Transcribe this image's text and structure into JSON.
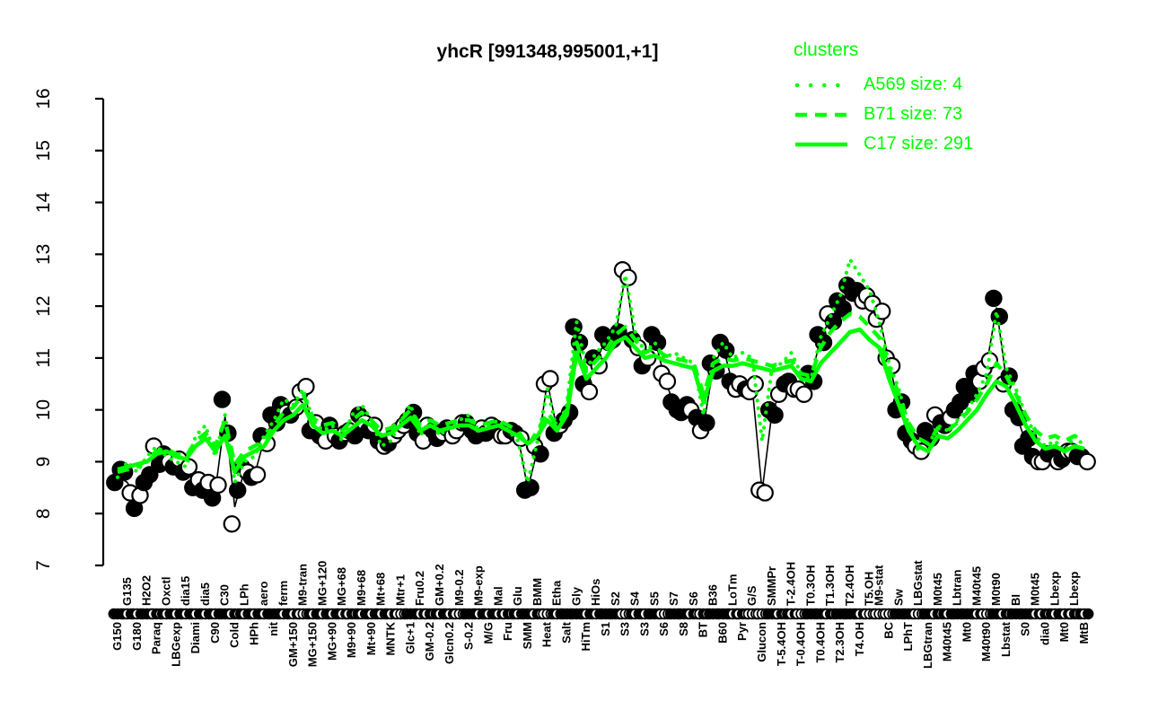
{
  "title": "yhcR [991348,995001,+1]",
  "legend": {
    "title": "clusters",
    "entries": [
      {
        "label": "A569 size: 4",
        "style": "dotted"
      },
      {
        "label": "B71 size: 73",
        "style": "dashed"
      },
      {
        "label": "C17 size: 291",
        "style": "solid"
      }
    ]
  },
  "colors": {
    "cluster_green": "#00FF00",
    "points_black": "#000000",
    "background": "#FFFFFF"
  },
  "chart_data": {
    "type": "line",
    "title": "yhcR [991348,995001,+1]",
    "ylabel": "",
    "xlabel": "",
    "ylim": [
      7,
      16
    ],
    "yticks": [
      7,
      8,
      9,
      10,
      11,
      12,
      13,
      14,
      15,
      16
    ],
    "grid": false,
    "legend_position": "top-right",
    "note": "black circles = per-condition expression replicates (filled/open), thin black line = per-condition mean, green lines = cluster mean profiles",
    "conditions": [
      [
        "G150",
        0,
        8.6,
        1,
        8.85,
        1
      ],
      [
        "G135",
        1,
        8.8,
        1,
        8.4,
        0
      ],
      [
        "G180",
        0,
        8.1,
        1,
        8.35,
        0
      ],
      [
        "H2O2",
        1,
        8.6,
        1,
        8.75,
        1
      ],
      [
        "Paraq",
        0,
        9.3,
        0,
        8.95,
        1
      ],
      [
        "Oxctl",
        1,
        9.15,
        1,
        9.0,
        0
      ],
      [
        "LBGexp",
        0,
        8.9,
        1,
        9.05,
        0
      ],
      [
        "dia15",
        1,
        8.8,
        1,
        8.9,
        0
      ],
      [
        "Diami",
        0,
        8.5,
        1,
        8.65,
        0
      ],
      [
        "dia5",
        1,
        8.45,
        1,
        8.6,
        0
      ],
      [
        "C90",
        0,
        8.3,
        1,
        8.55,
        0
      ],
      [
        "C30",
        1,
        10.2,
        1,
        9.55,
        1
      ],
      [
        "Cold",
        0,
        7.8,
        0,
        8.45,
        1
      ],
      [
        "LPh",
        1,
        8.9,
        1,
        8.8,
        0
      ],
      [
        "HPh",
        0,
        8.7,
        1,
        8.75,
        0
      ],
      [
        "aero",
        1,
        9.5,
        1,
        9.35,
        0
      ],
      [
        "nit",
        0,
        9.9,
        1,
        9.75,
        1
      ],
      [
        "ferm",
        1,
        10.1,
        1,
        9.95,
        0
      ],
      [
        "GM+150",
        0,
        9.9,
        1,
        10.05,
        0
      ],
      [
        "M9-tran",
        1,
        10.35,
        0,
        10.45,
        0
      ],
      [
        "MG+150",
        0,
        9.6,
        1,
        9.75,
        0
      ],
      [
        "MG+120",
        1,
        9.5,
        1,
        9.4,
        0
      ],
      [
        "MG+90",
        0,
        9.7,
        1,
        9.5,
        0
      ],
      [
        "MG+68",
        1,
        9.4,
        1,
        9.55,
        0
      ],
      [
        "M9+90",
        0,
        9.6,
        0,
        9.5,
        1
      ],
      [
        "M9+68",
        1,
        9.9,
        1,
        9.75,
        0
      ],
      [
        "Mt+90",
        0,
        9.6,
        1,
        9.7,
        0
      ],
      [
        "Mt+68",
        1,
        9.4,
        1,
        9.3,
        0
      ],
      [
        "MNTK",
        0,
        9.35,
        1,
        9.5,
        0
      ],
      [
        "Mtr+1",
        1,
        9.6,
        0,
        9.7,
        0
      ],
      [
        "Glc+1",
        0,
        9.8,
        1,
        9.95,
        1
      ],
      [
        "Fru0.2",
        1,
        9.55,
        1,
        9.4,
        0
      ],
      [
        "GM-0.2",
        0,
        9.7,
        0,
        9.6,
        1
      ],
      [
        "GM+0.2",
        1,
        9.45,
        1,
        9.55,
        0
      ],
      [
        "Glcn0.2",
        0,
        9.65,
        1,
        9.5,
        0
      ],
      [
        "M9-0.2",
        1,
        9.6,
        0,
        9.75,
        0
      ],
      [
        "S-0.2",
        0,
        9.75,
        1,
        9.6,
        1
      ],
      [
        "M9-exp",
        1,
        9.5,
        1,
        9.65,
        0
      ],
      [
        "M/G",
        0,
        9.55,
        1,
        9.7,
        0
      ],
      [
        "Mal",
        1,
        9.65,
        1,
        9.5,
        0
      ],
      [
        "Fru",
        0,
        9.5,
        0,
        9.6,
        1
      ],
      [
        "Glu",
        1,
        9.55,
        1,
        9.45,
        0
      ],
      [
        "SMM",
        0,
        8.45,
        1,
        8.5,
        1
      ],
      [
        "BMM",
        1,
        9.3,
        0,
        9.15,
        1
      ],
      [
        "Heat",
        0,
        10.5,
        0,
        10.6,
        0
      ],
      [
        "Etha",
        1,
        9.55,
        1,
        9.7,
        0
      ],
      [
        "Salt",
        0,
        9.8,
        1,
        9.95,
        1
      ],
      [
        "Gly",
        1,
        11.6,
        1,
        11.3,
        1
      ],
      [
        "HiTm",
        0,
        10.5,
        1,
        10.35,
        0
      ],
      [
        "HiOs",
        1,
        11.0,
        1,
        10.85,
        0
      ],
      [
        "S1",
        0,
        11.45,
        1,
        11.3,
        1
      ],
      [
        "S2",
        1,
        11.35,
        1,
        11.5,
        1
      ],
      [
        "S3",
        0,
        12.7,
        0,
        12.55,
        0
      ],
      [
        "S4",
        1,
        11.35,
        1,
        11.2,
        0
      ],
      [
        "S3",
        0,
        10.85,
        1,
        11.0,
        0
      ],
      [
        "S5",
        1,
        11.45,
        1,
        11.3,
        1
      ],
      [
        "S6",
        0,
        10.7,
        0,
        10.55,
        0
      ],
      [
        "S7",
        1,
        10.15,
        1,
        10.0,
        1
      ],
      [
        "S8",
        0,
        9.95,
        1,
        10.1,
        1
      ],
      [
        "S6",
        1,
        10.0,
        0,
        9.85,
        1
      ],
      [
        "BT",
        0,
        9.6,
        0,
        9.75,
        1
      ],
      [
        "B36",
        1,
        10.9,
        1,
        10.75,
        1
      ],
      [
        "B60",
        0,
        11.3,
        1,
        11.15,
        1
      ],
      [
        "LoTm",
        1,
        10.55,
        1,
        10.4,
        0
      ],
      [
        "Pyr",
        0,
        10.5,
        0,
        10.4,
        1
      ],
      [
        "G/S",
        1,
        10.35,
        0,
        10.5,
        0
      ],
      [
        "Glucon",
        0,
        8.45,
        0,
        8.4,
        0
      ],
      [
        "SMMPr",
        1,
        10.0,
        1,
        9.9,
        1
      ],
      [
        "T-5.4OH",
        0,
        10.3,
        0,
        10.5,
        1
      ],
      [
        "T-2.4OH",
        1,
        10.55,
        1,
        10.4,
        0
      ],
      [
        "T-0.4OH",
        0,
        10.4,
        0,
        10.3,
        0
      ],
      [
        "T0.3OH",
        1,
        10.7,
        1,
        10.55,
        1
      ],
      [
        "T0.4OH",
        0,
        11.45,
        1,
        11.3,
        1
      ],
      [
        "T1.3OH",
        1,
        11.85,
        0,
        11.7,
        1
      ],
      [
        "T2.3OH",
        0,
        12.1,
        1,
        11.95,
        1
      ],
      [
        "T2.4OH",
        1,
        12.4,
        1,
        12.25,
        1
      ],
      [
        "T4.OH",
        0,
        12.3,
        1,
        12.1,
        0
      ],
      [
        "T5.OH",
        1,
        12.2,
        0,
        12.05,
        0
      ],
      [
        "M9-stat",
        1,
        11.75,
        0,
        11.9,
        0
      ],
      [
        "BC",
        0,
        11.0,
        0,
        10.85,
        0
      ],
      [
        "Sw",
        1,
        10.0,
        1,
        10.15,
        1
      ],
      [
        "LPhT",
        0,
        9.55,
        1,
        9.4,
        1
      ],
      [
        "LBGstat",
        1,
        9.3,
        0,
        9.2,
        0
      ],
      [
        "LBGtran",
        0,
        9.6,
        1,
        9.45,
        1
      ],
      [
        "M0t45",
        1,
        9.9,
        0,
        9.75,
        1
      ],
      [
        "M40t45",
        0,
        9.7,
        1,
        9.85,
        0
      ],
      [
        "Lbtran",
        1,
        10.0,
        1,
        10.15,
        1
      ],
      [
        "Mt0",
        0,
        10.45,
        1,
        10.3,
        1
      ],
      [
        "M40t45",
        1,
        10.7,
        1,
        10.55,
        0
      ],
      [
        "M40t90",
        0,
        10.8,
        0,
        10.95,
        0
      ],
      [
        "M0t90",
        1,
        12.15,
        1,
        11.8,
        1
      ],
      [
        "Lbstat",
        0,
        10.5,
        0,
        10.65,
        1
      ],
      [
        "BI",
        1,
        10.0,
        1,
        9.85,
        1
      ],
      [
        "S0",
        0,
        9.3,
        1,
        9.45,
        1
      ],
      [
        "M0t45",
        1,
        9.1,
        1,
        9.0,
        0
      ],
      [
        "dia0",
        0,
        9.0,
        0,
        9.15,
        1
      ],
      [
        "Lbexp",
        1,
        9.15,
        1,
        9.0,
        0
      ],
      [
        "Mt0",
        0,
        9.05,
        1,
        9.2,
        0
      ],
      [
        "Lbexp",
        1,
        9.2,
        0,
        9.1,
        1
      ],
      [
        "MtB",
        0,
        9.1,
        1,
        9.0,
        0
      ]
    ],
    "series": [
      {
        "name": "A569 size: 4",
        "style": "dotted",
        "color": "#00FF00",
        "values": [
          8.7,
          9.0,
          8.8,
          9.1,
          9.3,
          9.1,
          9.0,
          8.9,
          9.5,
          9.7,
          9.1,
          9.9,
          8.6,
          9.0,
          9.1,
          9.5,
          9.8,
          10.2,
          10.1,
          10.4,
          9.8,
          9.6,
          9.7,
          9.4,
          9.9,
          10.1,
          9.8,
          9.3,
          9.4,
          9.8,
          10.1,
          9.5,
          9.8,
          9.5,
          9.7,
          9.8,
          9.9,
          9.6,
          9.7,
          9.8,
          9.6,
          9.4,
          8.6,
          9.4,
          10.4,
          9.6,
          10.1,
          11.7,
          10.8,
          11.1,
          11.3,
          11.6,
          12.6,
          11.5,
          11.1,
          11.3,
          11.0,
          11.1,
          11.0,
          10.9,
          9.9,
          11.0,
          11.3,
          11.0,
          11.1,
          11.0,
          9.4,
          10.8,
          10.9,
          11.1,
          10.7,
          10.6,
          11.4,
          11.8,
          12.2,
          12.9,
          12.6,
          12.3,
          11.7,
          10.9,
          10.4,
          9.7,
          9.2,
          9.3,
          9.7,
          9.6,
          9.8,
          10.0,
          10.3,
          10.7,
          11.9,
          10.8,
          10.4,
          9.9,
          9.5,
          9.3,
          9.4,
          9.2,
          9.5,
          9.3
        ]
      },
      {
        "name": "B71 size: 73",
        "style": "dashed",
        "color": "#00FF00",
        "values": [
          8.8,
          8.85,
          8.9,
          9.05,
          9.2,
          9.25,
          9.15,
          9.1,
          9.4,
          9.55,
          9.3,
          9.8,
          8.95,
          9.2,
          9.3,
          9.4,
          9.7,
          9.95,
          10.05,
          10.3,
          9.85,
          9.7,
          9.75,
          9.6,
          9.8,
          9.95,
          9.8,
          9.6,
          9.65,
          9.8,
          10.0,
          9.7,
          9.8,
          9.7,
          9.75,
          9.8,
          9.8,
          9.7,
          9.75,
          9.8,
          9.7,
          9.6,
          9.3,
          9.6,
          9.95,
          9.7,
          10.0,
          11.3,
          10.75,
          10.95,
          11.15,
          11.45,
          11.6,
          11.35,
          11.1,
          11.2,
          11.05,
          11.0,
          10.95,
          10.9,
          10.3,
          10.9,
          11.0,
          10.95,
          11.0,
          10.95,
          10.9,
          10.85,
          10.9,
          10.95,
          10.7,
          10.65,
          11.2,
          11.5,
          11.7,
          11.85,
          11.8,
          11.6,
          11.4,
          10.8,
          10.3,
          9.75,
          9.45,
          9.35,
          9.65,
          9.6,
          9.75,
          9.95,
          10.2,
          10.5,
          10.9,
          10.65,
          10.3,
          9.9,
          9.6,
          9.45,
          9.5,
          9.4,
          9.5,
          9.4
        ]
      },
      {
        "name": "C17 size: 291",
        "style": "solid",
        "color": "#00FF00",
        "values": [
          8.85,
          8.9,
          8.95,
          9.0,
          9.15,
          9.2,
          9.1,
          9.05,
          9.3,
          9.45,
          9.2,
          9.5,
          8.8,
          9.1,
          9.2,
          9.3,
          9.6,
          9.8,
          9.9,
          10.1,
          9.7,
          9.55,
          9.6,
          9.5,
          9.65,
          9.8,
          9.7,
          9.5,
          9.55,
          9.7,
          9.85,
          9.6,
          9.7,
          9.6,
          9.65,
          9.7,
          9.7,
          9.6,
          9.65,
          9.7,
          9.6,
          9.5,
          9.35,
          9.5,
          9.8,
          9.6,
          9.9,
          11.1,
          10.6,
          10.8,
          11.0,
          11.3,
          11.4,
          11.2,
          11.0,
          11.05,
          10.95,
          10.9,
          10.85,
          10.8,
          10.15,
          10.75,
          10.85,
          10.85,
          10.9,
          10.85,
          10.8,
          10.75,
          10.8,
          10.85,
          10.6,
          10.55,
          10.9,
          11.1,
          11.3,
          11.5,
          11.55,
          11.35,
          11.2,
          10.6,
          10.1,
          9.6,
          9.3,
          9.2,
          9.5,
          9.45,
          9.6,
          9.8,
          10.0,
          10.3,
          10.55,
          10.45,
          10.1,
          9.7,
          9.4,
          9.25,
          9.3,
          9.2,
          9.3,
          9.25
        ]
      }
    ]
  }
}
